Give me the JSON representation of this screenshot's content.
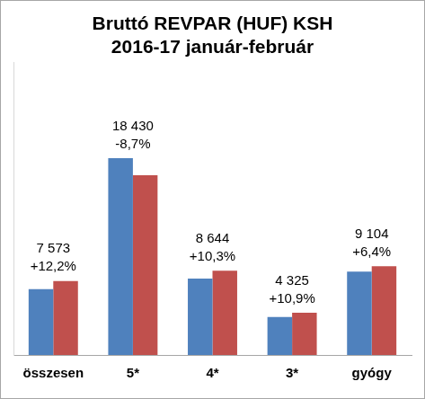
{
  "chart_data": {
    "type": "bar",
    "title": [
      "Bruttó REVPAR (HUF) KSH",
      "2016-17 január-február"
    ],
    "categories": [
      "összesen",
      "5*",
      "4*",
      "3*",
      "gyógy"
    ],
    "series": [
      {
        "color": "#4f81bd",
        "values": [
          6750,
          20186,
          7837,
          3900,
          8556
        ]
      },
      {
        "color": "#c0504d",
        "values": [
          7573,
          18430,
          8644,
          4325,
          9104
        ],
        "value_labels": [
          "7 573",
          "18 430",
          "8 644",
          "4 325",
          "9 104"
        ]
      }
    ],
    "annotations": [
      "+12,2%",
      "-8,7%",
      "+10,3%",
      "+10,9%",
      "+6,4%"
    ],
    "ylim": [
      0,
      30000
    ],
    "grid": false,
    "data_labels": true,
    "tick_labels": "x"
  }
}
